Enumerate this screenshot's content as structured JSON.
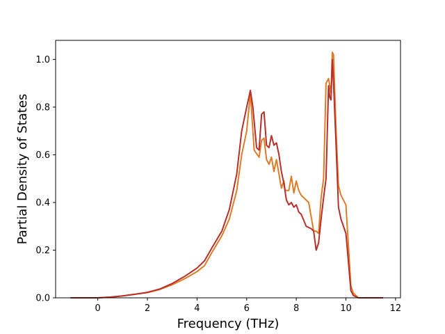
{
  "chart_data": {
    "type": "line",
    "xlabel": "Frequency (THz)",
    "ylabel": "Partial Density of States",
    "xlim": [
      -1.7,
      12.2
    ],
    "ylim": [
      0.0,
      1.08
    ],
    "xticks": [
      0,
      2,
      4,
      6,
      8,
      10,
      12
    ],
    "yticks": [
      0.0,
      0.2,
      0.4,
      0.6,
      0.8,
      1.0
    ],
    "xtick_labels": [
      "0",
      "2",
      "4",
      "6",
      "8",
      "10",
      "12"
    ],
    "ytick_labels": [
      "0.0",
      "0.2",
      "0.4",
      "0.6",
      "0.8",
      "1.0"
    ],
    "grid": false,
    "series": [
      {
        "color": "#e07b25",
        "x": [
          -1.1,
          0.0,
          0.5,
          1.0,
          1.5,
          2.0,
          2.5,
          3.0,
          3.5,
          4.0,
          4.3,
          4.6,
          5.0,
          5.3,
          5.6,
          5.8,
          6.0,
          6.15,
          6.3,
          6.5,
          6.6,
          6.7,
          6.8,
          6.9,
          7.0,
          7.1,
          7.2,
          7.3,
          7.4,
          7.5,
          7.55,
          7.6,
          7.7,
          7.8,
          7.9,
          8.0,
          8.1,
          8.2,
          8.3,
          8.5,
          8.7,
          8.8,
          8.9,
          9.0,
          9.1,
          9.2,
          9.3,
          9.4,
          9.45,
          9.5,
          9.6,
          9.7,
          9.8,
          10.0,
          10.1,
          10.2,
          10.3,
          10.5,
          11.5
        ],
        "y": [
          0.0,
          0.0,
          0.003,
          0.008,
          0.015,
          0.022,
          0.035,
          0.055,
          0.08,
          0.11,
          0.135,
          0.19,
          0.26,
          0.33,
          0.45,
          0.6,
          0.7,
          0.86,
          0.62,
          0.59,
          0.66,
          0.67,
          0.58,
          0.56,
          0.59,
          0.53,
          0.58,
          0.52,
          0.46,
          0.49,
          0.45,
          0.45,
          0.45,
          0.51,
          0.44,
          0.49,
          0.45,
          0.43,
          0.42,
          0.4,
          0.28,
          0.28,
          0.27,
          0.42,
          0.5,
          0.9,
          0.92,
          0.86,
          1.03,
          1.02,
          0.71,
          0.47,
          0.43,
          0.39,
          0.22,
          0.05,
          0.02,
          0.0,
          0.0
        ]
      },
      {
        "color": "#b82e2a",
        "x": [
          -1.1,
          0.0,
          0.5,
          1.0,
          1.5,
          2.0,
          2.5,
          3.0,
          3.5,
          4.0,
          4.3,
          4.6,
          5.0,
          5.3,
          5.6,
          5.8,
          6.0,
          6.15,
          6.25,
          6.4,
          6.5,
          6.6,
          6.7,
          6.8,
          6.9,
          7.0,
          7.1,
          7.2,
          7.3,
          7.4,
          7.5,
          7.6,
          7.7,
          7.8,
          7.9,
          8.0,
          8.1,
          8.2,
          8.4,
          8.6,
          8.7,
          8.8,
          8.9,
          9.0,
          9.1,
          9.2,
          9.3,
          9.35,
          9.4,
          9.45,
          9.5,
          9.6,
          9.7,
          9.8,
          10.0,
          10.1,
          10.2,
          10.3,
          10.5,
          11.5
        ],
        "y": [
          0.0,
          0.0,
          0.003,
          0.008,
          0.015,
          0.023,
          0.037,
          0.06,
          0.09,
          0.125,
          0.155,
          0.21,
          0.28,
          0.37,
          0.52,
          0.7,
          0.8,
          0.87,
          0.8,
          0.63,
          0.62,
          0.77,
          0.78,
          0.64,
          0.63,
          0.68,
          0.64,
          0.65,
          0.6,
          0.53,
          0.48,
          0.41,
          0.39,
          0.4,
          0.38,
          0.39,
          0.36,
          0.35,
          0.3,
          0.29,
          0.28,
          0.2,
          0.23,
          0.33,
          0.42,
          0.5,
          0.89,
          0.84,
          0.83,
          1.0,
          0.9,
          0.65,
          0.38,
          0.33,
          0.27,
          0.15,
          0.03,
          0.01,
          0.0,
          0.0
        ]
      }
    ]
  }
}
